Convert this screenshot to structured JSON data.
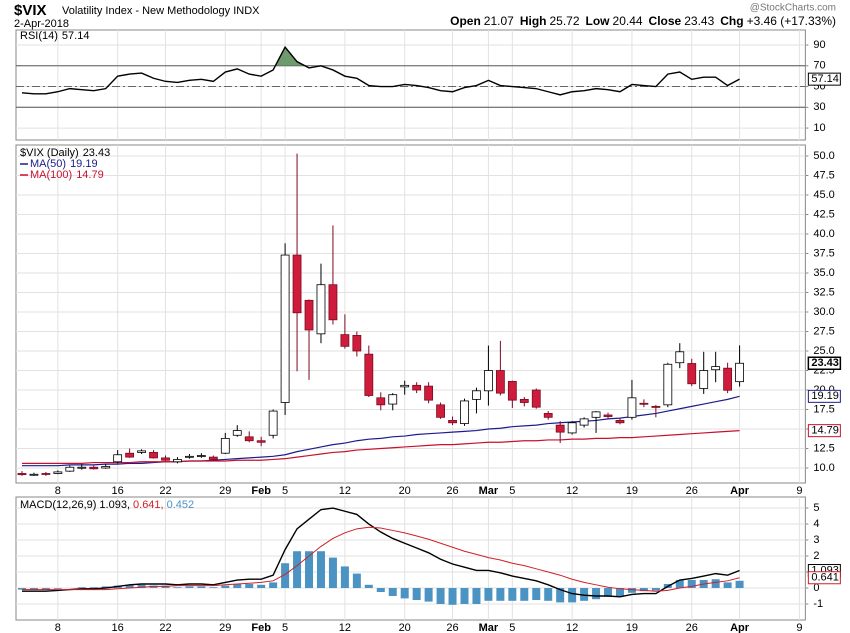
{
  "header": {
    "symbol": "$VIX",
    "name": "Volatility Index - New Methodology INDX",
    "date": "2-Apr-2018",
    "credit": "@StockCharts.com",
    "quote": [
      {
        "label": "Open",
        "value": 21.07
      },
      {
        "label": "High",
        "value": 25.72
      },
      {
        "label": "Low",
        "value": 20.44
      },
      {
        "label": "Close",
        "value": 23.43
      },
      {
        "label": "Chg",
        "value": "+3.46 (+17.33%)"
      }
    ]
  },
  "chart_data": [
    {
      "type": "line",
      "grid": true,
      "ylim": [
        -1.5,
        104.5
      ],
      "yticks": [
        90,
        70,
        50,
        30,
        10
      ],
      "bands": [
        30,
        70
      ],
      "midline": 50,
      "fill_color": "#6e9a6e",
      "series": [
        {
          "name": "RSI(14)",
          "color": "#000000",
          "values": [
            44,
            43,
            43,
            45,
            48,
            47,
            46,
            48,
            60,
            62,
            63,
            58,
            55,
            54,
            56,
            57,
            55,
            64,
            67,
            62,
            60,
            66,
            88,
            74,
            68,
            70,
            66,
            60,
            58,
            51,
            50,
            50,
            52,
            51,
            49,
            46,
            45,
            49,
            51,
            56,
            51,
            50,
            49,
            48,
            45,
            42,
            45,
            46,
            48,
            47,
            45,
            52,
            51,
            50,
            62,
            64,
            57,
            59,
            59,
            51,
            57.14,
            null,
            null,
            null,
            null,
            null
          ]
        }
      ]
    },
    {
      "type": "candlestick",
      "grid": true,
      "name": "$VIX (Daily)",
      "up_color": "#ffffff",
      "down_color": "#d01c3c",
      "ylim": [
        8.08,
        51.41
      ],
      "yticks": [
        {
          "value": 10,
          "label": "10.0"
        },
        12.5,
        {
          "value": 15,
          "label": "15.0"
        },
        17.5,
        {
          "value": 20,
          "label": "20.0"
        },
        22.5,
        {
          "value": 25,
          "label": "25.0"
        },
        27.5,
        {
          "value": 30,
          "label": "30.0"
        },
        32.5,
        {
          "value": 35,
          "label": "35.0"
        },
        37.5,
        {
          "value": 40,
          "label": "40.0"
        },
        42.5,
        {
          "value": 45,
          "label": "45.0"
        },
        47.5,
        {
          "value": 50,
          "label": "50.0"
        }
      ],
      "categories": [
        null,
        null,
        null,
        "8",
        null,
        null,
        null,
        null,
        "16",
        null,
        null,
        null,
        "22",
        null,
        null,
        null,
        null,
        "29",
        null,
        null,
        "Feb",
        null,
        "5",
        null,
        null,
        null,
        null,
        "12",
        null,
        null,
        null,
        null,
        "20",
        null,
        null,
        null,
        "26",
        null,
        null,
        "Mar",
        null,
        "5",
        null,
        null,
        null,
        null,
        "12",
        null,
        null,
        null,
        null,
        "19",
        null,
        null,
        null,
        null,
        "26",
        null,
        null,
        null,
        "Apr",
        null,
        null,
        null,
        null,
        "9"
      ],
      "open": [
        9.3,
        9.1,
        9.3,
        9.3,
        9.6,
        10.0,
        10.1,
        10.0,
        10.8,
        11.9,
        12.0,
        12.0,
        11.3,
        10.8,
        11.4,
        11.5,
        11.4,
        11.9,
        14.2,
        14.0,
        13.5,
        14.2,
        18.4,
        37.3,
        31.5,
        27.2,
        33.5,
        27.1,
        27.0,
        24.6,
        19.0,
        18.2,
        20.4,
        20.6,
        20.5,
        18.1,
        16.1,
        15.7,
        18.8,
        19.9,
        22.5,
        21.1,
        18.8,
        20.0,
        17.0,
        15.5,
        14.5,
        15.5,
        16.5,
        16.8,
        16.1,
        16.5,
        18.3,
        17.9,
        18.1,
        23.5,
        23.4,
        20.2,
        22.6,
        22.8,
        21.07,
        null,
        null,
        null,
        null,
        null
      ],
      "high": [
        9.6,
        9.4,
        9.5,
        9.7,
        10.3,
        10.5,
        10.3,
        10.5,
        12.3,
        12.5,
        12.4,
        12.3,
        11.6,
        11.4,
        11.8,
        11.9,
        11.6,
        14.5,
        15.5,
        14.7,
        14.0,
        17.5,
        38.8,
        50.3,
        31.6,
        36.2,
        41.1,
        29.7,
        27.5,
        25.7,
        19.7,
        19.6,
        21.2,
        21.0,
        21.0,
        18.4,
        16.6,
        18.9,
        20.3,
        25.7,
        26.3,
        21.2,
        19.1,
        20.2,
        17.3,
        16.0,
        16.0,
        16.5,
        17.3,
        17.1,
        16.4,
        21.3,
        18.8,
        18.1,
        23.5,
        26.0,
        24.0,
        24.9,
        24.9,
        23.5,
        25.72,
        null,
        null,
        null,
        null,
        null
      ],
      "low": [
        9.0,
        9.0,
        9.0,
        9.2,
        9.5,
        9.8,
        9.8,
        9.9,
        10.6,
        11.3,
        11.8,
        11.2,
        10.9,
        10.6,
        11.2,
        11.3,
        10.9,
        11.8,
        14.0,
        13.3,
        12.8,
        13.8,
        16.8,
        22.4,
        21.3,
        26.0,
        28.4,
        25.3,
        24.3,
        19.1,
        17.4,
        17.4,
        19.4,
        19.6,
        18.3,
        16.3,
        15.5,
        15.4,
        17.0,
        18.0,
        19.3,
        17.7,
        17.9,
        17.6,
        16.2,
        13.2,
        14.3,
        15.2,
        14.5,
        16.3,
        15.6,
        16.2,
        17.8,
        16.5,
        17.8,
        22.8,
        20.5,
        19.5,
        21.0,
        19.6,
        20.44,
        null,
        null,
        null,
        null,
        null
      ],
      "close": [
        9.15,
        9.2,
        9.2,
        9.5,
        10.1,
        10.1,
        9.9,
        10.2,
        11.7,
        11.4,
        12.2,
        11.3,
        11.0,
        11.1,
        11.5,
        11.6,
        11.1,
        13.8,
        14.8,
        13.5,
        13.3,
        17.3,
        37.3,
        29.9,
        27.7,
        33.5,
        29.0,
        25.6,
        25.0,
        19.3,
        18.1,
        19.4,
        20.6,
        20.0,
        18.7,
        16.5,
        15.8,
        18.6,
        19.9,
        22.5,
        19.6,
        18.7,
        18.4,
        17.8,
        16.5,
        14.6,
        15.8,
        16.3,
        17.2,
        16.6,
        15.8,
        19.0,
        18.2,
        17.8,
        23.3,
        24.9,
        20.8,
        22.5,
        23.0,
        19.97,
        23.43,
        null,
        null,
        null,
        null,
        null
      ],
      "series": [
        {
          "name": "MA(50)",
          "color": "#1c1c8c",
          "values": [
            10.3,
            10.3,
            10.3,
            10.3,
            10.4,
            10.4,
            10.4,
            10.5,
            10.5,
            10.6,
            10.6,
            10.7,
            10.8,
            10.8,
            10.9,
            10.9,
            11.0,
            11.1,
            11.2,
            11.3,
            11.4,
            11.5,
            11.7,
            12.1,
            12.4,
            12.7,
            13.0,
            13.2,
            13.5,
            13.7,
            13.8,
            14.0,
            14.1,
            14.3,
            14.4,
            14.5,
            14.6,
            14.7,
            14.8,
            15.0,
            15.1,
            15.3,
            15.4,
            15.5,
            15.7,
            15.8,
            15.9,
            16.0,
            16.1,
            16.3,
            16.4,
            16.6,
            16.8,
            17.0,
            17.3,
            17.6,
            17.9,
            18.2,
            18.5,
            18.8,
            19.19,
            null,
            null,
            null,
            null,
            null
          ]
        },
        {
          "name": "MA(100)",
          "color": "#c8102e",
          "values": [
            10.6,
            10.6,
            10.6,
            10.6,
            10.6,
            10.6,
            10.7,
            10.7,
            10.7,
            10.7,
            10.8,
            10.8,
            10.8,
            10.8,
            10.9,
            10.9,
            10.9,
            10.9,
            11.0,
            11.0,
            11.0,
            11.1,
            11.2,
            11.4,
            11.6,
            11.8,
            12.0,
            12.1,
            12.3,
            12.4,
            12.5,
            12.6,
            12.7,
            12.8,
            12.9,
            13.0,
            13.0,
            13.1,
            13.2,
            13.3,
            13.3,
            13.4,
            13.5,
            13.5,
            13.6,
            13.6,
            13.7,
            13.7,
            13.8,
            13.8,
            13.9,
            13.9,
            14.0,
            14.1,
            14.2,
            14.3,
            14.4,
            14.5,
            14.6,
            14.7,
            14.79,
            null,
            null,
            null,
            null,
            null
          ]
        }
      ]
    },
    {
      "type": "line",
      "grid": true,
      "ylim": [
        -2,
        5.69
      ],
      "yticks": [
        5,
        4,
        3,
        2,
        1,
        0,
        -1
      ],
      "legend": [
        "MACD(12,26,9)",
        "1.093,",
        "0.641,",
        "0.452"
      ],
      "categories": [
        null,
        null,
        null,
        "8",
        null,
        null,
        null,
        null,
        "16",
        null,
        null,
        null,
        "22",
        null,
        null,
        null,
        null,
        "29",
        null,
        null,
        "Feb",
        null,
        "5",
        null,
        null,
        null,
        null,
        "12",
        null,
        null,
        null,
        null,
        "20",
        null,
        null,
        null,
        "26",
        null,
        null,
        "Mar",
        null,
        "5",
        null,
        null,
        null,
        null,
        "12",
        null,
        null,
        null,
        null,
        "19",
        null,
        null,
        null,
        null,
        "26",
        null,
        null,
        null,
        "Apr",
        null,
        null,
        null,
        null,
        "9"
      ],
      "series": [
        {
          "style": "line",
          "color": "#000000",
          "values": [
            -0.2,
            -0.2,
            -0.2,
            -0.15,
            -0.1,
            -0.05,
            -0.05,
            0.0,
            0.1,
            0.2,
            0.25,
            0.25,
            0.25,
            0.2,
            0.25,
            0.25,
            0.2,
            0.35,
            0.5,
            0.55,
            0.55,
            0.8,
            2.4,
            3.7,
            4.3,
            4.9,
            5.0,
            4.8,
            4.6,
            4.0,
            3.5,
            3.1,
            2.8,
            2.5,
            2.2,
            1.8,
            1.5,
            1.3,
            1.1,
            1.1,
            0.95,
            0.75,
            0.6,
            0.45,
            0.2,
            -0.1,
            -0.35,
            -0.45,
            -0.5,
            -0.5,
            -0.55,
            -0.4,
            -0.35,
            -0.35,
            0.1,
            0.5,
            0.6,
            0.75,
            0.9,
            0.8,
            1.093,
            null,
            null,
            null,
            null,
            null
          ]
        },
        {
          "style": "line",
          "color": "#d0202a",
          "values": [
            -0.1,
            -0.1,
            -0.1,
            -0.1,
            -0.1,
            -0.1,
            -0.1,
            -0.1,
            -0.05,
            0.0,
            0.05,
            0.1,
            0.1,
            0.15,
            0.15,
            0.15,
            0.15,
            0.2,
            0.25,
            0.3,
            0.35,
            0.45,
            0.85,
            1.4,
            2.0,
            2.6,
            3.1,
            3.45,
            3.7,
            3.8,
            3.75,
            3.6,
            3.45,
            3.25,
            3.05,
            2.8,
            2.55,
            2.3,
            2.1,
            1.9,
            1.75,
            1.55,
            1.4,
            1.2,
            1.0,
            0.8,
            0.55,
            0.35,
            0.2,
            0.05,
            -0.05,
            -0.1,
            -0.15,
            -0.2,
            -0.15,
            0.0,
            0.1,
            0.25,
            0.35,
            0.45,
            0.641,
            null,
            null,
            null,
            null,
            null
          ]
        },
        {
          "style": "histogram",
          "color": "#4b93c3",
          "values": [
            -0.1,
            -0.1,
            -0.1,
            -0.05,
            0.0,
            0.05,
            0.05,
            0.1,
            0.15,
            0.2,
            0.2,
            0.15,
            0.15,
            0.05,
            0.1,
            0.1,
            0.05,
            0.15,
            0.25,
            0.25,
            0.2,
            0.35,
            1.55,
            2.3,
            2.3,
            2.3,
            1.9,
            1.35,
            0.9,
            0.2,
            -0.25,
            -0.5,
            -0.65,
            -0.75,
            -0.85,
            -1.0,
            -1.05,
            -1.0,
            -1.0,
            -0.8,
            -0.8,
            -0.8,
            -0.8,
            -0.75,
            -0.8,
            -0.9,
            -0.9,
            -0.8,
            -0.7,
            -0.55,
            -0.5,
            -0.3,
            -0.2,
            -0.15,
            0.25,
            0.5,
            0.5,
            0.5,
            0.55,
            0.35,
            0.452,
            null,
            null,
            null,
            null,
            null
          ]
        }
      ]
    }
  ]
}
